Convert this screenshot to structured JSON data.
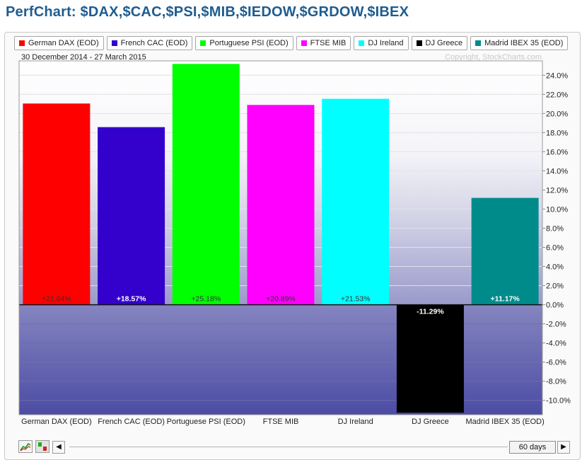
{
  "title": "PerfChart: $DAX,$CAC,$PSI,$MIB,$IEDOW,$GRDOW,$IBEX",
  "date_range": "30 December 2014 - 27 March 2015",
  "copyright": "Copyright, StockCharts.com",
  "legend": [
    {
      "label": "German DAX (EOD)",
      "color": "#ff0000"
    },
    {
      "label": "French CAC (EOD)",
      "color": "#3300cc"
    },
    {
      "label": "Portuguese PSI (EOD)",
      "color": "#00ff00"
    },
    {
      "label": "FTSE MIB",
      "color": "#ff00ff"
    },
    {
      "label": "DJ Ireland",
      "color": "#00ffff"
    },
    {
      "label": "DJ Greece",
      "color": "#000000"
    },
    {
      "label": "Madrid IBEX 35 (EOD)",
      "color": "#008b8b"
    }
  ],
  "controls": {
    "period_label": "60 days",
    "scroll_left": "◀",
    "scroll_right": "▶",
    "histogram_icon": "histogram-icon",
    "line_chart_icon": "line-chart-icon"
  },
  "chart_data": {
    "type": "bar",
    "categories": [
      "German DAX (EOD)",
      "French CAC (EOD)",
      "Portuguese PSI (EOD)",
      "FTSE MIB",
      "DJ Ireland",
      "DJ Greece",
      "Madrid IBEX 35 (EOD)"
    ],
    "values": [
      21.04,
      18.57,
      25.18,
      20.89,
      21.53,
      -11.29,
      11.17
    ],
    "value_labels": [
      "+21.04%",
      "+18.57%",
      "+25.18%",
      "+20.89%",
      "+21.53%",
      "-11.29%",
      "+11.17%"
    ],
    "colors": [
      "#ff0000",
      "#3300cc",
      "#00ff00",
      "#ff00ff",
      "#00ffff",
      "#000000",
      "#008b8b"
    ],
    "label_colors": [
      "#333333",
      "#ffffff",
      "#333333",
      "#333333",
      "#333333",
      "#ffffff",
      "#ffffff"
    ],
    "ylim": [
      -11.5,
      25.5
    ],
    "yticks": [
      24,
      22,
      20,
      18,
      16,
      14,
      12,
      10,
      8,
      6,
      4,
      2,
      0,
      -2,
      -4,
      -6,
      -8,
      -10
    ],
    "ytick_labels": [
      "24.0%",
      "22.0%",
      "20.0%",
      "18.0%",
      "16.0%",
      "14.0%",
      "12.0%",
      "10.0%",
      "8.0%",
      "6.0%",
      "4.0%",
      "2.0%",
      "0.0%",
      "-2.0%",
      "-4.0%",
      "-6.0%",
      "-8.0%",
      "-10.0%"
    ],
    "y_axis_position": "right",
    "grid": true,
    "legend_position": "top"
  }
}
